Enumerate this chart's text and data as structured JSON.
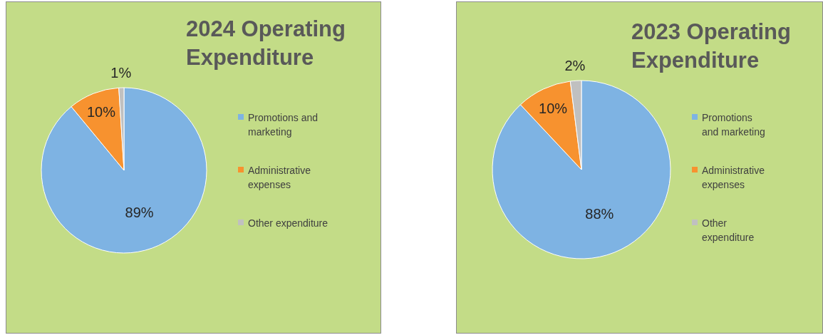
{
  "chart_data": [
    {
      "type": "pie",
      "title": "2024 Operating Expenditure",
      "categories": [
        "Promotions and marketing",
        "Administrative expenses",
        "Other expenditure"
      ],
      "values": [
        89,
        10,
        1
      ],
      "colors": [
        "#7eb3e3",
        "#f7922f",
        "#c0c0c0"
      ],
      "value_labels": [
        "89%",
        "10%",
        "1%"
      ],
      "legend": "right"
    },
    {
      "type": "pie",
      "title": "2023 Operating Expenditure",
      "categories": [
        "Promotions and marketing",
        "Administrative expenses",
        "Other expenditure"
      ],
      "values": [
        88,
        10,
        2
      ],
      "colors": [
        "#7eb3e3",
        "#f7922f",
        "#c0c0c0"
      ],
      "value_labels": [
        "88%",
        "10%",
        "2%"
      ],
      "legend": "right"
    }
  ]
}
